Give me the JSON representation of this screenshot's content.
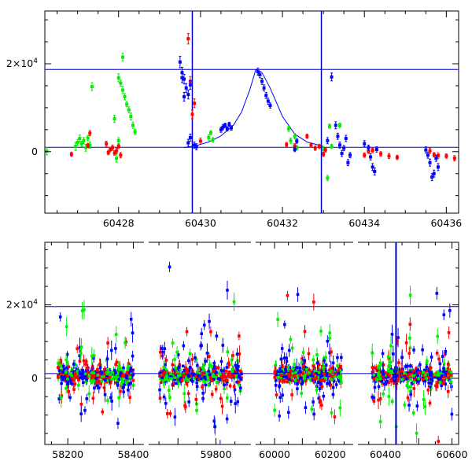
{
  "chart_data": [
    {
      "type": "scatter",
      "panel": "top",
      "title": "",
      "xlabel": "",
      "ylabel": "",
      "xlim": [
        60426.2,
        60436.3
      ],
      "ylim": [
        -14000,
        32000
      ],
      "x_ticks": [
        {
          "value": 60428,
          "label": "60428"
        },
        {
          "value": 60430,
          "label": "60430"
        },
        {
          "value": 60432,
          "label": "60432"
        },
        {
          "value": 60434,
          "label": "60434"
        },
        {
          "value": 60436,
          "label": "60436"
        }
      ],
      "y_ticks": [
        {
          "value": 0,
          "label": "0"
        },
        {
          "value": 20000,
          "label": "2×10⁴"
        }
      ],
      "reference_lines": {
        "horizontal": [
          18700,
          1000
        ],
        "vertical": [
          60429.8,
          60432.95
        ]
      },
      "model_curve": {
        "color": "#0000ff",
        "x": [
          60429.6,
          60429.9,
          60430.2,
          60430.5,
          60430.8,
          60431.0,
          60431.2,
          60431.35,
          60431.5,
          60431.7,
          60432.0,
          60432.3,
          60432.6,
          60433.0
        ],
        "y": [
          900,
          1400,
          2200,
          3600,
          6000,
          9000,
          14000,
          18700,
          18000,
          14500,
          8000,
          4000,
          2200,
          1200
        ]
      },
      "series": [
        {
          "color": "#00ee00",
          "points": [
            [
              60426.25,
              100,
              800
            ],
            [
              60426.95,
              1200,
              900
            ],
            [
              60427.0,
              2100,
              700
            ],
            [
              60427.05,
              3000,
              800
            ],
            [
              60427.1,
              1800,
              600
            ],
            [
              60427.15,
              2500,
              700
            ],
            [
              60427.2,
              900,
              800
            ],
            [
              60427.25,
              3100,
              600
            ],
            [
              60427.3,
              1500,
              700
            ],
            [
              60427.35,
              14800,
              900
            ],
            [
              60427.9,
              7500,
              800
            ],
            [
              60428.0,
              16800,
              900
            ],
            [
              60428.05,
              15600,
              700
            ],
            [
              60428.1,
              14000,
              800
            ],
            [
              60428.15,
              12500,
              700
            ],
            [
              60428.2,
              10800,
              600
            ],
            [
              60428.25,
              9500,
              700
            ],
            [
              60428.3,
              8000,
              800
            ],
            [
              60428.35,
              6000,
              700
            ],
            [
              60428.4,
              4500,
              600
            ],
            [
              60428.1,
              21500,
              900
            ],
            [
              60427.95,
              -1500,
              900
            ],
            [
              60428.0,
              2500,
              700
            ],
            [
              60430.2,
              3200,
              600
            ],
            [
              60430.25,
              4300,
              500
            ],
            [
              60430.3,
              2700,
              500
            ],
            [
              60432.2,
              2500,
              600
            ],
            [
              60432.3,
              3500,
              600
            ],
            [
              60432.35,
              900,
              500
            ],
            [
              60432.15,
              5200,
              600
            ],
            [
              60433.15,
              5800,
              500
            ],
            [
              60433.2,
              1200,
              500
            ],
            [
              60433.1,
              -6000,
              600
            ],
            [
              60433.0,
              500,
              600
            ],
            [
              60433.4,
              6000,
              500
            ]
          ]
        },
        {
          "color": "#ff0000",
          "points": [
            [
              60426.85,
              -600,
              500
            ],
            [
              60427.25,
              1400,
              500
            ],
            [
              60427.7,
              1800,
              600
            ],
            [
              60427.75,
              -200,
              500
            ],
            [
              60427.8,
              500,
              500
            ],
            [
              60427.85,
              900,
              600
            ],
            [
              60427.9,
              -300,
              500
            ],
            [
              60427.95,
              200,
              600
            ],
            [
              60428.0,
              1200,
              500
            ],
            [
              60428.05,
              -800,
              600
            ],
            [
              60427.3,
              4200,
              600
            ],
            [
              60429.7,
              25700,
              1200
            ],
            [
              60429.75,
              16000,
              1100
            ],
            [
              60429.8,
              8500,
              1000
            ],
            [
              60429.85,
              11000,
              1000
            ],
            [
              60430.0,
              2400,
              700
            ],
            [
              60432.1,
              1600,
              500
            ],
            [
              60432.3,
              1300,
              500
            ],
            [
              60432.6,
              3500,
              500
            ],
            [
              60432.7,
              1500,
              500
            ],
            [
              60432.8,
              800,
              500
            ],
            [
              60432.9,
              1200,
              500
            ],
            [
              60433.0,
              -600,
              500
            ],
            [
              60433.05,
              400,
              500
            ],
            [
              60434.0,
              -800,
              500
            ],
            [
              60434.1,
              100,
              500
            ],
            [
              60434.2,
              300,
              500
            ],
            [
              60434.4,
              -500,
              500
            ],
            [
              60434.6,
              -1000,
              600
            ],
            [
              60434.8,
              -1300,
              500
            ],
            [
              60435.6,
              200,
              600
            ],
            [
              60435.7,
              -700,
              500
            ],
            [
              60435.8,
              -900,
              600
            ],
            [
              60436.0,
              -1000,
              500
            ],
            [
              60436.2,
              -1500,
              600
            ]
          ]
        },
        {
          "color": "#0000ff",
          "points": [
            [
              60429.5,
              20400,
              1300
            ],
            [
              60429.55,
              18000,
              1200
            ],
            [
              60429.6,
              16500,
              1100
            ],
            [
              60429.65,
              14500,
              1000
            ],
            [
              60429.7,
              13000,
              1000
            ],
            [
              60429.75,
              15200,
              1000
            ],
            [
              60429.55,
              16800,
              1100
            ],
            [
              60429.6,
              12500,
              1000
            ],
            [
              60429.7,
              2000,
              800
            ],
            [
              60429.75,
              3200,
              800
            ],
            [
              60429.85,
              1500,
              700
            ],
            [
              60429.9,
              1100,
              700
            ],
            [
              60430.5,
              5000,
              600
            ],
            [
              60430.55,
              5600,
              600
            ],
            [
              60430.6,
              6000,
              500
            ],
            [
              60430.65,
              5200,
              500
            ],
            [
              60430.7,
              6200,
              500
            ],
            [
              60430.75,
              5400,
              500
            ],
            [
              60431.4,
              18200,
              800
            ],
            [
              60431.45,
              17500,
              700
            ],
            [
              60431.5,
              16000,
              700
            ],
            [
              60431.55,
              14500,
              700
            ],
            [
              60431.6,
              12800,
              700
            ],
            [
              60431.65,
              11500,
              700
            ],
            [
              60431.7,
              10500,
              600
            ],
            [
              60432.3,
              500,
              500
            ],
            [
              60432.35,
              2400,
              500
            ],
            [
              60433.1,
              2500,
              700
            ],
            [
              60433.2,
              17000,
              900
            ],
            [
              60433.3,
              6000,
              800
            ],
            [
              60433.35,
              3500,
              700
            ],
            [
              60433.4,
              1500,
              700
            ],
            [
              60433.45,
              -400,
              700
            ],
            [
              60433.5,
              800,
              600
            ],
            [
              60433.55,
              3000,
              700
            ],
            [
              60433.6,
              -2500,
              700
            ],
            [
              60433.65,
              -800,
              600
            ],
            [
              60434.0,
              1800,
              700
            ],
            [
              60434.1,
              900,
              600
            ],
            [
              60434.15,
              -1200,
              700
            ],
            [
              60434.2,
              -3500,
              800
            ],
            [
              60434.25,
              -4500,
              800
            ],
            [
              60434.3,
              500,
              600
            ],
            [
              60435.5,
              400,
              700
            ],
            [
              60435.55,
              -800,
              700
            ],
            [
              60435.6,
              -2500,
              800
            ],
            [
              60435.65,
              -5800,
              800
            ],
            [
              60435.7,
              -5000,
              800
            ],
            [
              60435.75,
              -1500,
              700
            ],
            [
              60435.8,
              -3500,
              800
            ]
          ]
        }
      ]
    },
    {
      "type": "scatter",
      "panel": "bottom",
      "title": "",
      "xlabel": "",
      "ylabel": "",
      "ylim": [
        -18000,
        37000
      ],
      "segments": [
        {
          "xlim": [
            58130,
            58430
          ]
        },
        {
          "xlim": [
            59625,
            59890
          ]
        },
        {
          "xlim": [
            59935,
            60280
          ]
        },
        {
          "xlim": [
            60320,
            60620
          ]
        }
      ],
      "x_ticks": [
        {
          "value": 58200,
          "label": "58200"
        },
        {
          "value": 58400,
          "label": "58400"
        },
        {
          "value": 59800,
          "label": "59800"
        },
        {
          "value": 60000,
          "label": "60000"
        },
        {
          "value": 60200,
          "label": "60200"
        },
        {
          "value": 60400,
          "label": "60400"
        },
        {
          "value": 60600,
          "label": "60600"
        }
      ],
      "y_ticks": [
        {
          "value": 0,
          "label": "0"
        },
        {
          "value": 20000,
          "label": "2×10⁴"
        }
      ],
      "reference_lines": {
        "horizontal": [
          19500,
          1300
        ],
        "vertical": [
          60432
        ]
      },
      "seasons": [
        {
          "x_start": 58170,
          "x_end": 58400
        },
        {
          "x_start": 59650,
          "x_end": 59870
        },
        {
          "x_start": 60000,
          "x_end": 60240
        },
        {
          "x_start": 60360,
          "x_end": 60600
        }
      ],
      "series_colors": [
        "#00ee00",
        "#ff0000",
        "#0000ff"
      ]
    }
  ]
}
